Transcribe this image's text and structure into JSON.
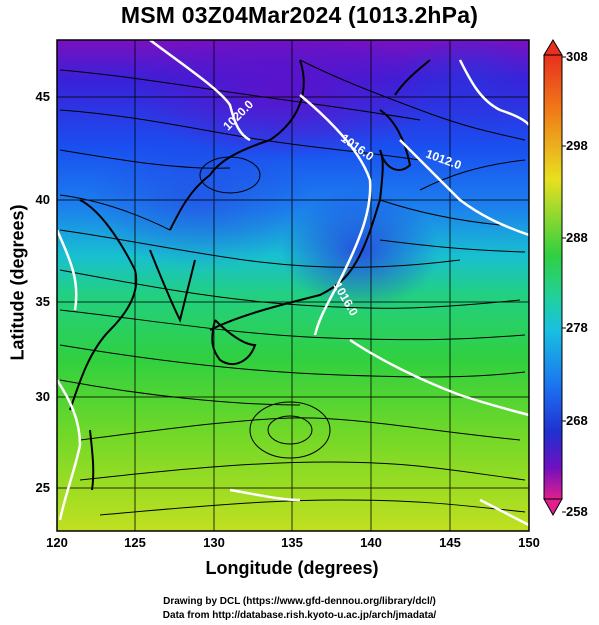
{
  "title": "MSM 03Z04Mar2024 (1013.2hPa)",
  "xlabel": "Longitude (degrees)",
  "ylabel": "Latitude  (degrees)",
  "x_ticks": [
    "120",
    "125",
    "130",
    "135",
    "140",
    "145",
    "150"
  ],
  "y_ticks": [
    "25",
    "30",
    "35",
    "40",
    "45"
  ],
  "colorbar_ticks": [
    "258",
    "268",
    "278",
    "288",
    "298",
    "308"
  ],
  "contour_labels": [
    "1020.0",
    "1016.0",
    "1012.0",
    "1016.0"
  ],
  "credit_line1": "Drawing by DCL (https://www.gfd-dennou.org/library/dcl/)",
  "credit_line2": "Data from http://database.rish.kyoto-u.ac.jp/arch/jmadata/",
  "colors": {
    "cold": "#4a10d0",
    "cool": "#1e6cf0",
    "mild": "#20d0a0",
    "warm": "#30d040",
    "warmer": "#b8e020",
    "coast": "#000000",
    "isobar": "#ffffff",
    "colorbar_min": "#e0208c",
    "colorbar_max": "#e83020"
  },
  "legend_name": "colorbar",
  "map_type": "streamlines over temperature shading with isobars"
}
